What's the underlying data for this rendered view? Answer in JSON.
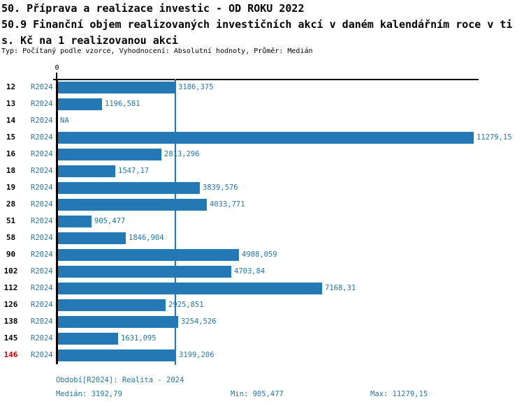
{
  "header": {
    "title_line1": "50. Příprava a realizace investic - OD ROKU 2022",
    "title_line2": "50.9 Finanční objem realizovaných investičních akcí v daném kalendářním roce v ti",
    "title_line3": "s. Kč na 1 realizovanou akci",
    "meta_line": "Typ: Počítaný podle vzorce, Vyhodnocení: Absolutní hodnoty, Průměr: Medián"
  },
  "chart_data": {
    "type": "bar",
    "orientation": "horizontal",
    "title": "50.9 Finanční objem realizovaných investičních akcí v daném kalendářním roce v tis. Kč na 1 realizovanou akci",
    "series_name": "R2024",
    "categories": [
      "12",
      "13",
      "14",
      "15",
      "16",
      "18",
      "19",
      "28",
      "51",
      "58",
      "90",
      "102",
      "112",
      "126",
      "138",
      "145",
      "146"
    ],
    "values": [
      3186.375,
      1196.581,
      null,
      11279.15,
      2813.296,
      1547.17,
      3839.576,
      4033.771,
      905.477,
      1846.904,
      4908.059,
      4703.84,
      7168.31,
      2925.851,
      3254.526,
      1631.095,
      3199.206
    ],
    "value_labels": [
      "3186,375",
      "1196,581",
      "NA",
      "11279,15",
      "2813,296",
      "1547,17",
      "3839,576",
      "4033,771",
      "905,477",
      "1846,904",
      "4908,059",
      "4703,84",
      "7168,31",
      "2925,851",
      "3254,526",
      "1631,095",
      "3199,206"
    ],
    "na_label": "NA",
    "highlighted_category": "146",
    "x_axis": {
      "zero_label": "0",
      "xlim": [
        0,
        11280
      ]
    },
    "median_value": 3192.79,
    "grid": false,
    "legend": false
  },
  "footer": {
    "period_label": "Období[R2024]: Realita - 2024",
    "median_label": "Medián: 3192,79",
    "min_label": "Min: 905,477",
    "max_label": "Max: 11279,15"
  },
  "colors": {
    "accent_blue": "#2478b4",
    "highlight_red": "#d40000",
    "axis_black": "#000000",
    "background": "#ffffff"
  }
}
